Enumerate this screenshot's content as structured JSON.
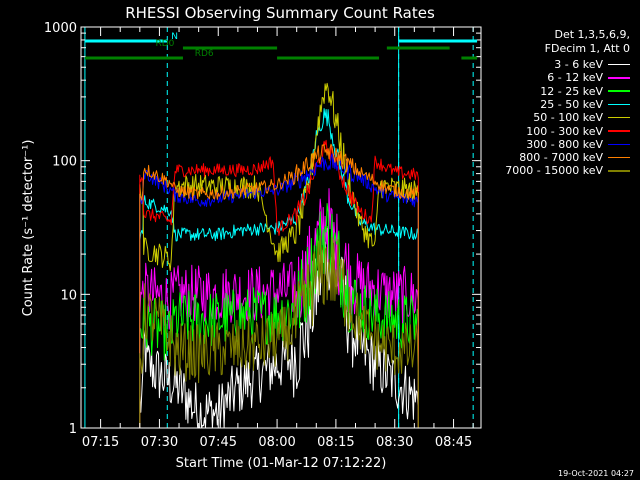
{
  "colors": {
    "background": "#000000",
    "axes": "#ffffff",
    "attenuator": "#00ffff",
    "decimation": "#008000"
  },
  "chart_data": {
    "type": "line",
    "title": "RHESSI Observing Summary Count Rates",
    "xlabel": "Start Time (01-Mar-12 07:12:22)",
    "ylabel": "Count Rate (s⁻¹ detector⁻¹)",
    "yscale": "log",
    "ylim": [
      1,
      1000
    ],
    "xlim": [
      "07:10",
      "08:52"
    ],
    "x_ticks": [
      "07:15",
      "07:30",
      "07:45",
      "08:00",
      "08:15",
      "08:30",
      "08:45"
    ],
    "y_ticks": [
      "1",
      "10",
      "100",
      "1000"
    ],
    "legend_placement": "right",
    "legend_header": [
      "Det 1,3,5,6,9,",
      "FDecim 1, Att 0"
    ],
    "data_start": "07:25",
    "data_end": "08:36",
    "night_gap": [
      "07:59",
      "08:25"
    ],
    "series": [
      {
        "name": "3 - 6 keV",
        "color": "#ffffff",
        "points": [
          [
            "07:26",
            4.5
          ],
          [
            "07:27",
            3
          ],
          [
            "07:30",
            2.5
          ],
          [
            "07:35",
            2
          ],
          [
            "07:40",
            1.3
          ],
          [
            "07:45",
            1.3
          ],
          [
            "07:50",
            2
          ],
          [
            "07:55",
            2.5
          ],
          [
            "08:00",
            3
          ],
          [
            "08:05",
            3.5
          ],
          [
            "08:08",
            6
          ],
          [
            "08:10",
            10
          ],
          [
            "08:12",
            18
          ],
          [
            "08:13",
            22
          ],
          [
            "08:15",
            15
          ],
          [
            "08:18",
            7
          ],
          [
            "08:21",
            4
          ],
          [
            "08:25",
            3
          ],
          [
            "08:28",
            2.5
          ],
          [
            "08:32",
            2
          ],
          [
            "08:36",
            1.6
          ]
        ]
      },
      {
        "name": "6 - 12 keV",
        "color": "#ff00ff",
        "points": [
          [
            "07:26",
            10.5
          ],
          [
            "07:30",
            9.5
          ],
          [
            "07:33",
            9
          ],
          [
            "07:34",
            10
          ],
          [
            "07:40",
            10
          ],
          [
            "07:45",
            10
          ],
          [
            "07:50",
            10.2
          ],
          [
            "07:55",
            10
          ],
          [
            "08:00",
            10.5
          ],
          [
            "08:05",
            11
          ],
          [
            "08:08",
            16
          ],
          [
            "08:10",
            24
          ],
          [
            "08:12",
            33
          ],
          [
            "08:13",
            34
          ],
          [
            "08:15",
            22
          ],
          [
            "08:18",
            15
          ],
          [
            "08:21",
            12
          ],
          [
            "08:25",
            11
          ],
          [
            "08:28",
            10
          ],
          [
            "08:32",
            9.8
          ],
          [
            "08:36",
            9.5
          ]
        ]
      },
      {
        "name": "12 - 25 keV",
        "color": "#00ff00",
        "points": [
          [
            "07:26",
            6
          ],
          [
            "07:30",
            5.5
          ],
          [
            "07:33",
            5
          ],
          [
            "07:34",
            6.5
          ],
          [
            "07:40",
            6.5
          ],
          [
            "07:45",
            6.5
          ],
          [
            "07:50",
            6.8
          ],
          [
            "07:55",
            7
          ],
          [
            "08:00",
            7
          ],
          [
            "08:05",
            8
          ],
          [
            "08:08",
            13
          ],
          [
            "08:10",
            20
          ],
          [
            "08:12",
            28
          ],
          [
            "08:13",
            30
          ],
          [
            "08:15",
            20
          ],
          [
            "08:18",
            11
          ],
          [
            "08:21",
            8
          ],
          [
            "08:25",
            7
          ],
          [
            "08:28",
            6.5
          ],
          [
            "08:32",
            6.3
          ],
          [
            "08:36",
            6
          ]
        ]
      },
      {
        "name": "25 - 50 keV",
        "color": "#00ffff",
        "points": [
          [
            "07:26",
            50
          ],
          [
            "07:30",
            45
          ],
          [
            "07:33",
            42
          ],
          [
            "07:34",
            28
          ],
          [
            "07:40",
            28
          ],
          [
            "07:45",
            28
          ],
          [
            "07:50",
            30
          ],
          [
            "07:55",
            31
          ],
          [
            "08:00",
            31
          ],
          [
            "08:05",
            38
          ],
          [
            "08:08",
            70
          ],
          [
            "08:10",
            150
          ],
          [
            "08:12",
            220
          ],
          [
            "08:13",
            210
          ],
          [
            "08:15",
            120
          ],
          [
            "08:18",
            55
          ],
          [
            "08:21",
            35
          ],
          [
            "08:25",
            31
          ],
          [
            "08:28",
            30
          ],
          [
            "08:32",
            29
          ],
          [
            "08:36",
            28
          ]
        ]
      },
      {
        "name": "50 - 100 keV",
        "color": "#cccc00",
        "points": [
          [
            "07:26",
            22
          ],
          [
            "07:30",
            20
          ],
          [
            "07:33",
            18
          ],
          [
            "07:34",
            65
          ],
          [
            "07:40",
            65
          ],
          [
            "07:45",
            64
          ],
          [
            "07:50",
            64
          ],
          [
            "07:55",
            64
          ],
          [
            "08:00",
            20
          ],
          [
            "08:05",
            30
          ],
          [
            "08:08",
            60
          ],
          [
            "08:10",
            160
          ],
          [
            "08:12",
            340
          ],
          [
            "08:13",
            370
          ],
          [
            "08:15",
            200
          ],
          [
            "08:18",
            75
          ],
          [
            "08:21",
            35
          ],
          [
            "08:25",
            22
          ],
          [
            "08:26",
            65
          ],
          [
            "08:30",
            62
          ],
          [
            "08:33",
            60
          ],
          [
            "08:36",
            58
          ]
        ]
      },
      {
        "name": "100 - 300 keV",
        "color": "#ff0000",
        "points": [
          [
            "07:26",
            40
          ],
          [
            "07:30",
            38
          ],
          [
            "07:33",
            35
          ],
          [
            "07:34",
            85
          ],
          [
            "07:40",
            85
          ],
          [
            "07:45",
            85
          ],
          [
            "07:50",
            85
          ],
          [
            "07:55",
            87
          ],
          [
            "07:59",
            100
          ],
          [
            "08:00",
            30
          ],
          [
            "08:05",
            40
          ],
          [
            "08:08",
            60
          ],
          [
            "08:10",
            90
          ],
          [
            "08:12",
            120
          ],
          [
            "08:13",
            125
          ],
          [
            "08:15",
            95
          ],
          [
            "08:18",
            60
          ],
          [
            "08:21",
            42
          ],
          [
            "08:24",
            36
          ],
          [
            "08:25",
            100
          ],
          [
            "08:30",
            82
          ],
          [
            "08:33",
            80
          ],
          [
            "08:36",
            78
          ]
        ]
      },
      {
        "name": "300 - 800 keV",
        "color": "#0000ff",
        "points": [
          [
            "07:26",
            82
          ],
          [
            "07:30",
            68
          ],
          [
            "07:33",
            60
          ],
          [
            "07:34",
            55
          ],
          [
            "07:40",
            50
          ],
          [
            "07:45",
            52
          ],
          [
            "07:50",
            55
          ],
          [
            "07:55",
            58
          ],
          [
            "08:00",
            60
          ],
          [
            "08:05",
            70
          ],
          [
            "08:08",
            80
          ],
          [
            "08:10",
            90
          ],
          [
            "08:12",
            97
          ],
          [
            "08:13",
            97
          ],
          [
            "08:15",
            95
          ],
          [
            "08:18",
            85
          ],
          [
            "08:21",
            75
          ],
          [
            "08:25",
            62
          ],
          [
            "08:28",
            55
          ],
          [
            "08:32",
            52
          ],
          [
            "08:36",
            50
          ]
        ]
      },
      {
        "name": "800 - 7000 keV",
        "color": "#ff8000",
        "points": [
          [
            "07:26",
            88
          ],
          [
            "07:30",
            76
          ],
          [
            "07:33",
            68
          ],
          [
            "07:34",
            60
          ],
          [
            "07:40",
            56
          ],
          [
            "07:45",
            57
          ],
          [
            "07:50",
            59
          ],
          [
            "07:55",
            62
          ],
          [
            "08:00",
            66
          ],
          [
            "08:05",
            80
          ],
          [
            "08:08",
            95
          ],
          [
            "08:10",
            108
          ],
          [
            "08:12",
            115
          ],
          [
            "08:13",
            118
          ],
          [
            "08:15",
            110
          ],
          [
            "08:18",
            95
          ],
          [
            "08:21",
            82
          ],
          [
            "08:25",
            70
          ],
          [
            "08:28",
            62
          ],
          [
            "08:32",
            58
          ],
          [
            "08:36",
            56
          ]
        ]
      },
      {
        "name": "7000 - 15000 keV",
        "color": "#808000",
        "points": [
          [
            "07:26",
            7.5
          ],
          [
            "07:30",
            6
          ],
          [
            "07:33",
            4.5
          ],
          [
            "07:34",
            3.8
          ],
          [
            "07:40",
            3.6
          ],
          [
            "07:45",
            3.8
          ],
          [
            "07:50",
            4
          ],
          [
            "07:55",
            4.2
          ],
          [
            "08:00",
            4.5
          ],
          [
            "08:05",
            6
          ],
          [
            "08:08",
            10
          ],
          [
            "08:10",
            13
          ],
          [
            "08:12",
            15
          ],
          [
            "08:13",
            16
          ],
          [
            "08:15",
            14
          ],
          [
            "08:18",
            10
          ],
          [
            "08:21",
            6
          ],
          [
            "08:25",
            4.5
          ],
          [
            "08:28",
            4
          ],
          [
            "08:32",
            3.8
          ],
          [
            "08:36",
            3.6
          ]
        ]
      }
    ],
    "state_bars": [
      {
        "name": "N",
        "color": "#00ffff",
        "segments": [
          [
            "07:11",
            "07:32"
          ],
          [
            "08:31",
            "08:51"
          ]
        ]
      },
      {
        "name": "RD0",
        "color": "#008000",
        "segments": [
          [
            "07:36",
            "08:00"
          ],
          [
            "08:28",
            "08:44"
          ]
        ]
      },
      {
        "name": "RD6",
        "color": "#008000",
        "segments": [
          [
            "07:11",
            "07:36"
          ],
          [
            "08:00",
            "08:26"
          ],
          [
            "08:47",
            "08:51"
          ]
        ]
      }
    ],
    "vertical_lines_solid": [
      "07:11",
      "08:31"
    ],
    "vertical_lines_dashed": [
      "07:32",
      "08:31",
      "08:50"
    ]
  },
  "timestamp": "19-Oct-2021 04:27"
}
